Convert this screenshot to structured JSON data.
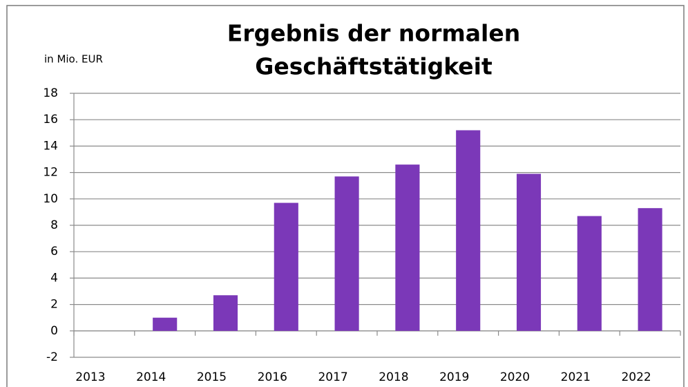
{
  "chart_data": {
    "type": "bar",
    "title": [
      "Ergebnis der normalen",
      "Geschäftstätigkeit"
    ],
    "y_axis_label": "in Mio. EUR",
    "categories": [
      "2013",
      "2014",
      "2015",
      "2016",
      "2017",
      "2018",
      "2019",
      "2020",
      "2021",
      "2022"
    ],
    "values": [
      0,
      1.0,
      2.7,
      9.7,
      11.7,
      12.6,
      15.2,
      11.9,
      8.7,
      9.3
    ],
    "color": "#7b38b8",
    "ylim": [
      -2,
      18
    ],
    "yticks": [
      -2,
      0,
      2,
      4,
      6,
      8,
      10,
      12,
      14,
      16,
      18
    ],
    "grid": true
  }
}
